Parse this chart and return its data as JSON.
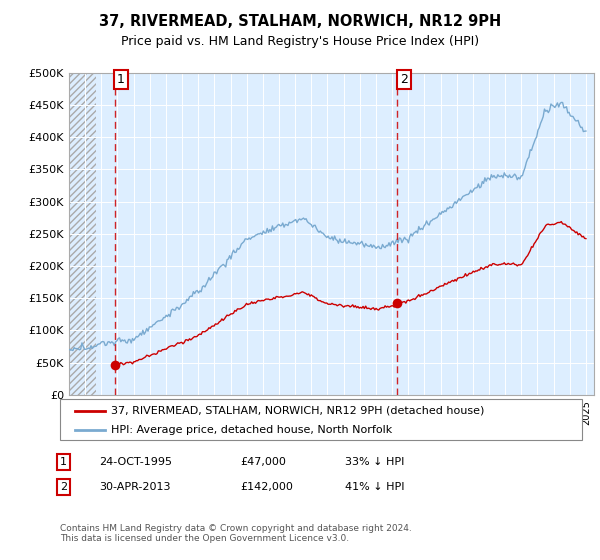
{
  "title": "37, RIVERMEAD, STALHAM, NORWICH, NR12 9PH",
  "subtitle": "Price paid vs. HM Land Registry's House Price Index (HPI)",
  "legend_line1": "37, RIVERMEAD, STALHAM, NORWICH, NR12 9PH (detached house)",
  "legend_line2": "HPI: Average price, detached house, North Norfolk",
  "transaction1_date": "24-OCT-1995",
  "transaction1_price": "£47,000",
  "transaction1_hpi": "33% ↓ HPI",
  "transaction1_year": 1995.82,
  "transaction1_value": 47000,
  "transaction2_date": "30-APR-2013",
  "transaction2_price": "£142,000",
  "transaction2_hpi": "41% ↓ HPI",
  "transaction2_year": 2013.33,
  "transaction2_value": 142000,
  "hpi_color": "#7aaad0",
  "price_color": "#cc0000",
  "background_color": "#ddeeff",
  "grid_color": "#ffffff",
  "footer": "Contains HM Land Registry data © Crown copyright and database right 2024.\nThis data is licensed under the Open Government Licence v3.0.",
  "ylim": [
    0,
    500000
  ],
  "yticks": [
    0,
    50000,
    100000,
    150000,
    200000,
    250000,
    300000,
    350000,
    400000,
    450000,
    500000
  ],
  "ytick_labels": [
    "£0",
    "£50K",
    "£100K",
    "£150K",
    "£200K",
    "£250K",
    "£300K",
    "£350K",
    "£400K",
    "£450K",
    "£500K"
  ],
  "xlim_start": 1993.0,
  "xlim_end": 2025.5,
  "hatch_end": 1994.7
}
